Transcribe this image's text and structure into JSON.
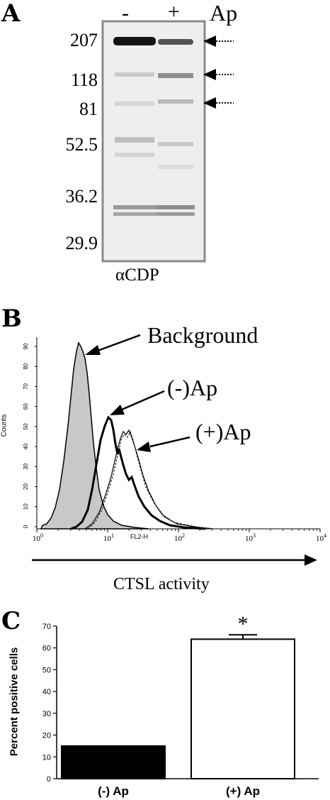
{
  "panel_a": {
    "letter": "A",
    "lane_labels": [
      "-",
      "+"
    ],
    "treatment_label": "Ap",
    "mw_markers": [
      "207",
      "118",
      "81",
      "52.5",
      "36.2",
      "29.9"
    ],
    "antibody_label": "αCDP"
  },
  "panel_b": {
    "letter": "B",
    "ylabel": "Counts",
    "yticks": [
      "0",
      "10",
      "20",
      "30",
      "40",
      "50",
      "60",
      "70",
      "80",
      "90"
    ],
    "xlabel": "FL2-H",
    "xtick_mantissa": "10",
    "xtick_exponents": [
      "0",
      "1",
      "2",
      "3",
      "4"
    ],
    "arrow_label": "CTSL activity",
    "annotations": [
      "Background",
      "(-)Ap",
      "(+)Ap"
    ]
  },
  "chart_data": {
    "type": "bar",
    "title": "",
    "panel_letter": "C",
    "categories": [
      "(-) Ap",
      "(+) Ap"
    ],
    "values": [
      15,
      64
    ],
    "error": [
      0.5,
      2
    ],
    "colors": [
      "#000000",
      "#ffffff"
    ],
    "ylabel": "Percent positive cells",
    "ylim": [
      0,
      70
    ],
    "yticks": [
      0,
      10,
      20,
      30,
      40,
      50,
      60,
      70
    ],
    "significance": "*"
  }
}
